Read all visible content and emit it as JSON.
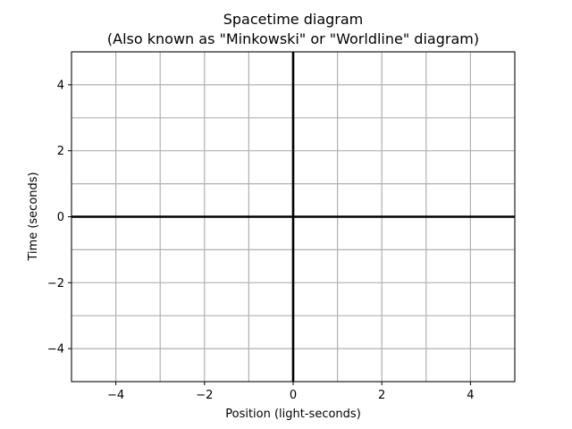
{
  "chart_data": {
    "type": "line",
    "title": "Spacetime diagram",
    "subtitle": "(Also known as \"Minkowski\" or \"Worldline\" diagram)",
    "xlabel": "Position (light-seconds)",
    "ylabel": "Time (seconds)",
    "xlim": [
      -5,
      5
    ],
    "ylim": [
      -5,
      5
    ],
    "x_ticks": [
      -4,
      -2,
      0,
      2,
      4
    ],
    "y_ticks": [
      -4,
      -2,
      0,
      2,
      4
    ],
    "grid": true,
    "grid_step": 1,
    "legend": "none",
    "series": [
      {
        "x": [
          -5,
          5
        ],
        "y": [
          0,
          0
        ]
      },
      {
        "x": [
          0,
          0
        ],
        "y": [
          -5,
          5
        ]
      }
    ],
    "colors": {
      "axis_lines": "#000000",
      "grid": "#b0b0b0",
      "frame": "#000000"
    }
  }
}
